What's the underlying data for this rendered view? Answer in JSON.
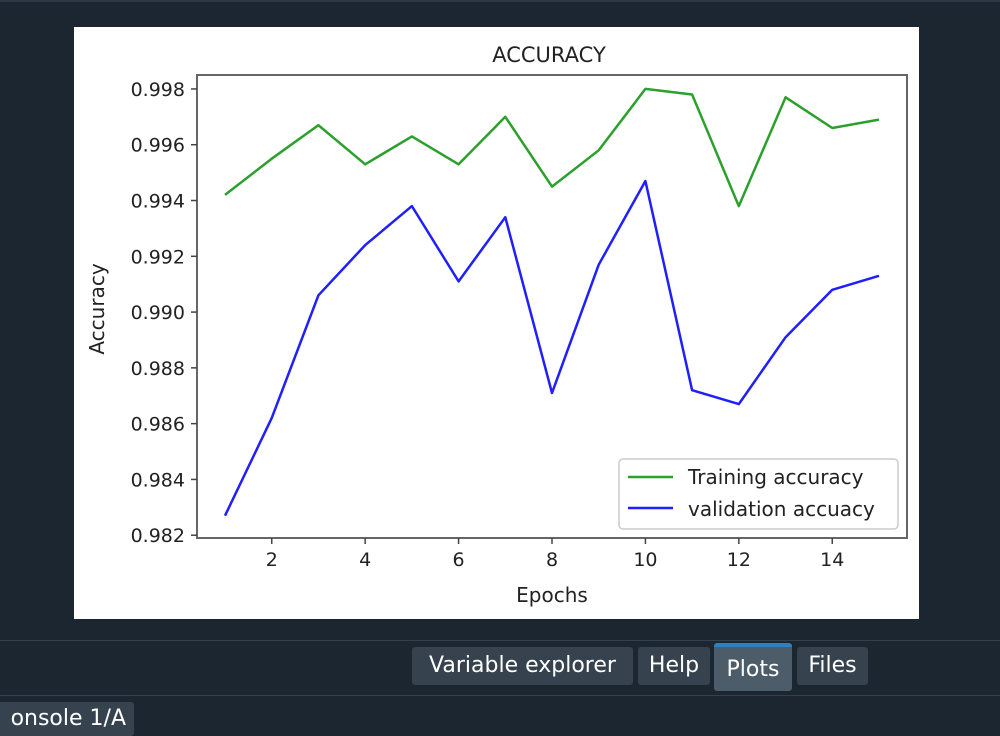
{
  "tabs": [
    {
      "label": "Variable explorer"
    },
    {
      "label": "Help"
    },
    {
      "label": "Plots"
    },
    {
      "label": "Files"
    }
  ],
  "console": {
    "tab_label": "onsole 1/A"
  },
  "colors": {
    "training": "#2ca02c",
    "validation": "#1f1fff",
    "pane_bg": "#1b2630",
    "active_tab_accent": "#2f7fc1"
  },
  "chart_data": {
    "type": "line",
    "title": "ACCURACY",
    "xlabel": "Epochs",
    "ylabel": "Accuracy",
    "x": [
      1,
      2,
      3,
      4,
      5,
      6,
      7,
      8,
      9,
      10,
      11,
      12,
      13,
      14,
      15
    ],
    "xticks": [
      2,
      4,
      6,
      8,
      10,
      12,
      14
    ],
    "yticks": [
      "0.982",
      "0.984",
      "0.986",
      "0.988",
      "0.990",
      "0.992",
      "0.994",
      "0.996",
      "0.998"
    ],
    "xlim": [
      0.4,
      15.6
    ],
    "ylim": [
      0.9819,
      0.9985
    ],
    "grid": false,
    "legend_position": "lower right",
    "series": [
      {
        "name": "Training accuracy",
        "color": "#2ca02c",
        "values": [
          0.9942,
          0.9955,
          0.9967,
          0.9953,
          0.9963,
          0.9953,
          0.997,
          0.9945,
          0.9958,
          0.998,
          0.9978,
          0.9938,
          0.9977,
          0.9966,
          0.9969
        ]
      },
      {
        "name": "validation accuacy",
        "color": "#1f1fff",
        "values": [
          0.9827,
          0.9862,
          0.9906,
          0.9924,
          0.9938,
          0.9911,
          0.9934,
          0.9871,
          0.9917,
          0.9947,
          0.9872,
          0.9867,
          0.9891,
          0.9908,
          0.9913
        ]
      }
    ]
  }
}
